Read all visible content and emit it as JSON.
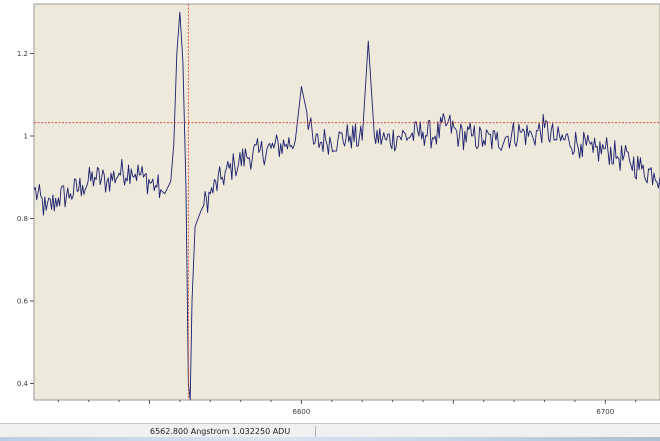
{
  "chart_data": {
    "type": "line",
    "title": "",
    "xlabel": "",
    "ylabel": "",
    "xlim": [
      6512,
      6718
    ],
    "ylim": [
      0.36,
      1.32
    ],
    "xticks": [
      6600,
      6700
    ],
    "xtick_labels": [
      "6600",
      "6700"
    ],
    "yticks": [
      0.4,
      0.6,
      0.8,
      1.0,
      1.2
    ],
    "ytick_labels": [
      "0.4",
      "0.6",
      "0.8",
      "1",
      "1.2"
    ],
    "grid": false,
    "cursor": {
      "x": 6562.8,
      "y": 1.03225
    },
    "series": [
      {
        "color": "#1c1f6e",
        "x": [
          6512,
          6516,
          6520,
          6524,
          6528,
          6532,
          6536,
          6540,
          6544,
          6548,
          6552,
          6555,
          6557,
          6558,
          6559,
          6560,
          6561,
          6562,
          6562.8,
          6563.4,
          6564,
          6565,
          6567,
          6570,
          6574,
          6578,
          6582,
          6586,
          6590,
          6595,
          6598,
          6600,
          6604,
          6608,
          6612,
          6616,
          6620,
          6622,
          6624,
          6628,
          6632,
          6636,
          6640,
          6644,
          6648,
          6652,
          6656,
          6660,
          6664,
          6668,
          6672,
          6676,
          6680,
          6684,
          6688,
          6692,
          6696,
          6700,
          6704,
          6708,
          6712,
          6716,
          6718
        ],
        "y": [
          0.87,
          0.82,
          0.85,
          0.86,
          0.88,
          0.9,
          0.89,
          0.91,
          0.92,
          0.9,
          0.88,
          0.86,
          0.89,
          0.98,
          1.2,
          1.3,
          1.18,
          0.88,
          0.4,
          0.36,
          0.6,
          0.78,
          0.82,
          0.86,
          0.9,
          0.93,
          0.95,
          0.96,
          0.97,
          0.98,
          0.99,
          1.12,
          0.98,
          0.99,
          0.99,
          1.0,
          0.99,
          1.23,
          1.0,
          0.99,
          1.0,
          1.0,
          1.01,
          1.0,
          1.03,
          1.0,
          1.0,
          0.99,
          0.99,
          1.0,
          1.01,
          1.0,
          1.02,
          0.99,
          0.99,
          0.98,
          0.96,
          0.97,
          0.95,
          0.94,
          0.92,
          0.91,
          0.9
        ]
      }
    ]
  },
  "status": {
    "text": "6562.800 Angstrom 1.032250 ADU"
  }
}
